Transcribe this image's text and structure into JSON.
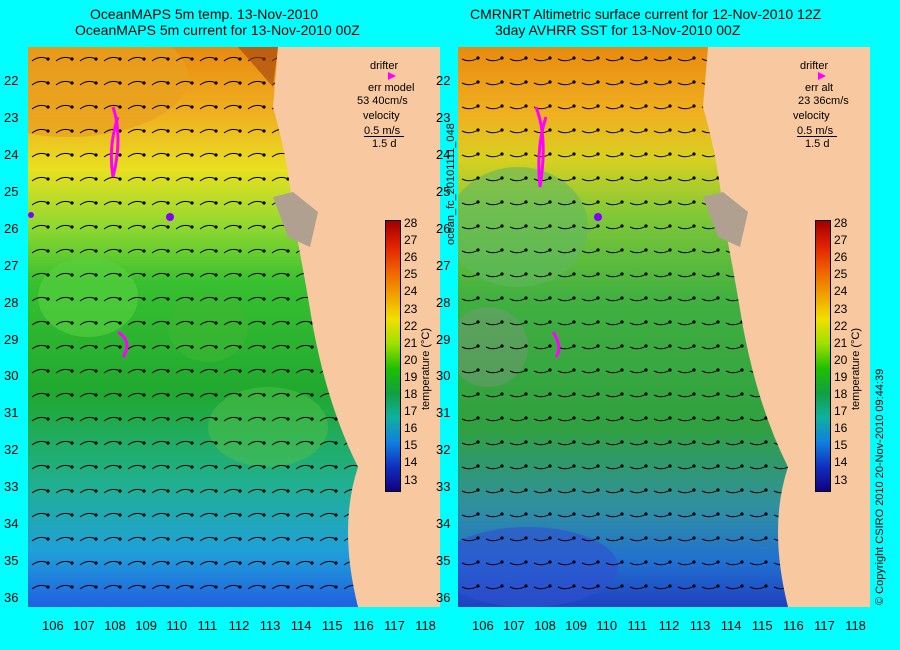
{
  "left_panel": {
    "title_line1": "OceanMAPS 5m temp. 13-Nov-2010",
    "title_line2": "OceanMAPS 5m current for 13-Nov-2010 00Z",
    "legend": {
      "drifter": "drifter",
      "err_label": "err model",
      "err_value": "53 40cm/s",
      "velocity": "velocity",
      "velocity_value": "0.5 m/s",
      "duration": "1.5 d"
    },
    "colorbar_label": "temperature (°C)"
  },
  "right_panel": {
    "title_line1": "CMRNRT Altimetric surface current for 12-Nov-2010 12Z",
    "title_line2": "3day AVHRR SST for 13-Nov-2010 00Z",
    "legend": {
      "drifter": "drifter",
      "err_label": "err alt",
      "err_value": "23 36cm/s",
      "velocity": "velocity",
      "velocity_value": "0.5 m/s",
      "duration": "1.5 d"
    },
    "colorbar_label": "temperature (°C)"
  },
  "file_label": "ocean_fc_20101111_048",
  "copyright": "© Copyright CSIRO 2010 20-Nov-2010 09:44:39",
  "latitudes": [
    "22",
    "23",
    "24",
    "25",
    "26",
    "27",
    "28",
    "29",
    "30",
    "31",
    "32",
    "33",
    "34",
    "35",
    "36"
  ],
  "longitudes": [
    "106",
    "107",
    "108",
    "109",
    "110",
    "111",
    "112",
    "113",
    "114",
    "115",
    "116",
    "117",
    "118"
  ],
  "colorbar_ticks": [
    "28",
    "27",
    "26",
    "25",
    "24",
    "23",
    "22",
    "21",
    "20",
    "19",
    "18",
    "17",
    "16",
    "15",
    "14",
    "13"
  ],
  "colors": {
    "background": "#00ffff",
    "land": "#f8c8a0",
    "drifter": "#ff00ff"
  }
}
